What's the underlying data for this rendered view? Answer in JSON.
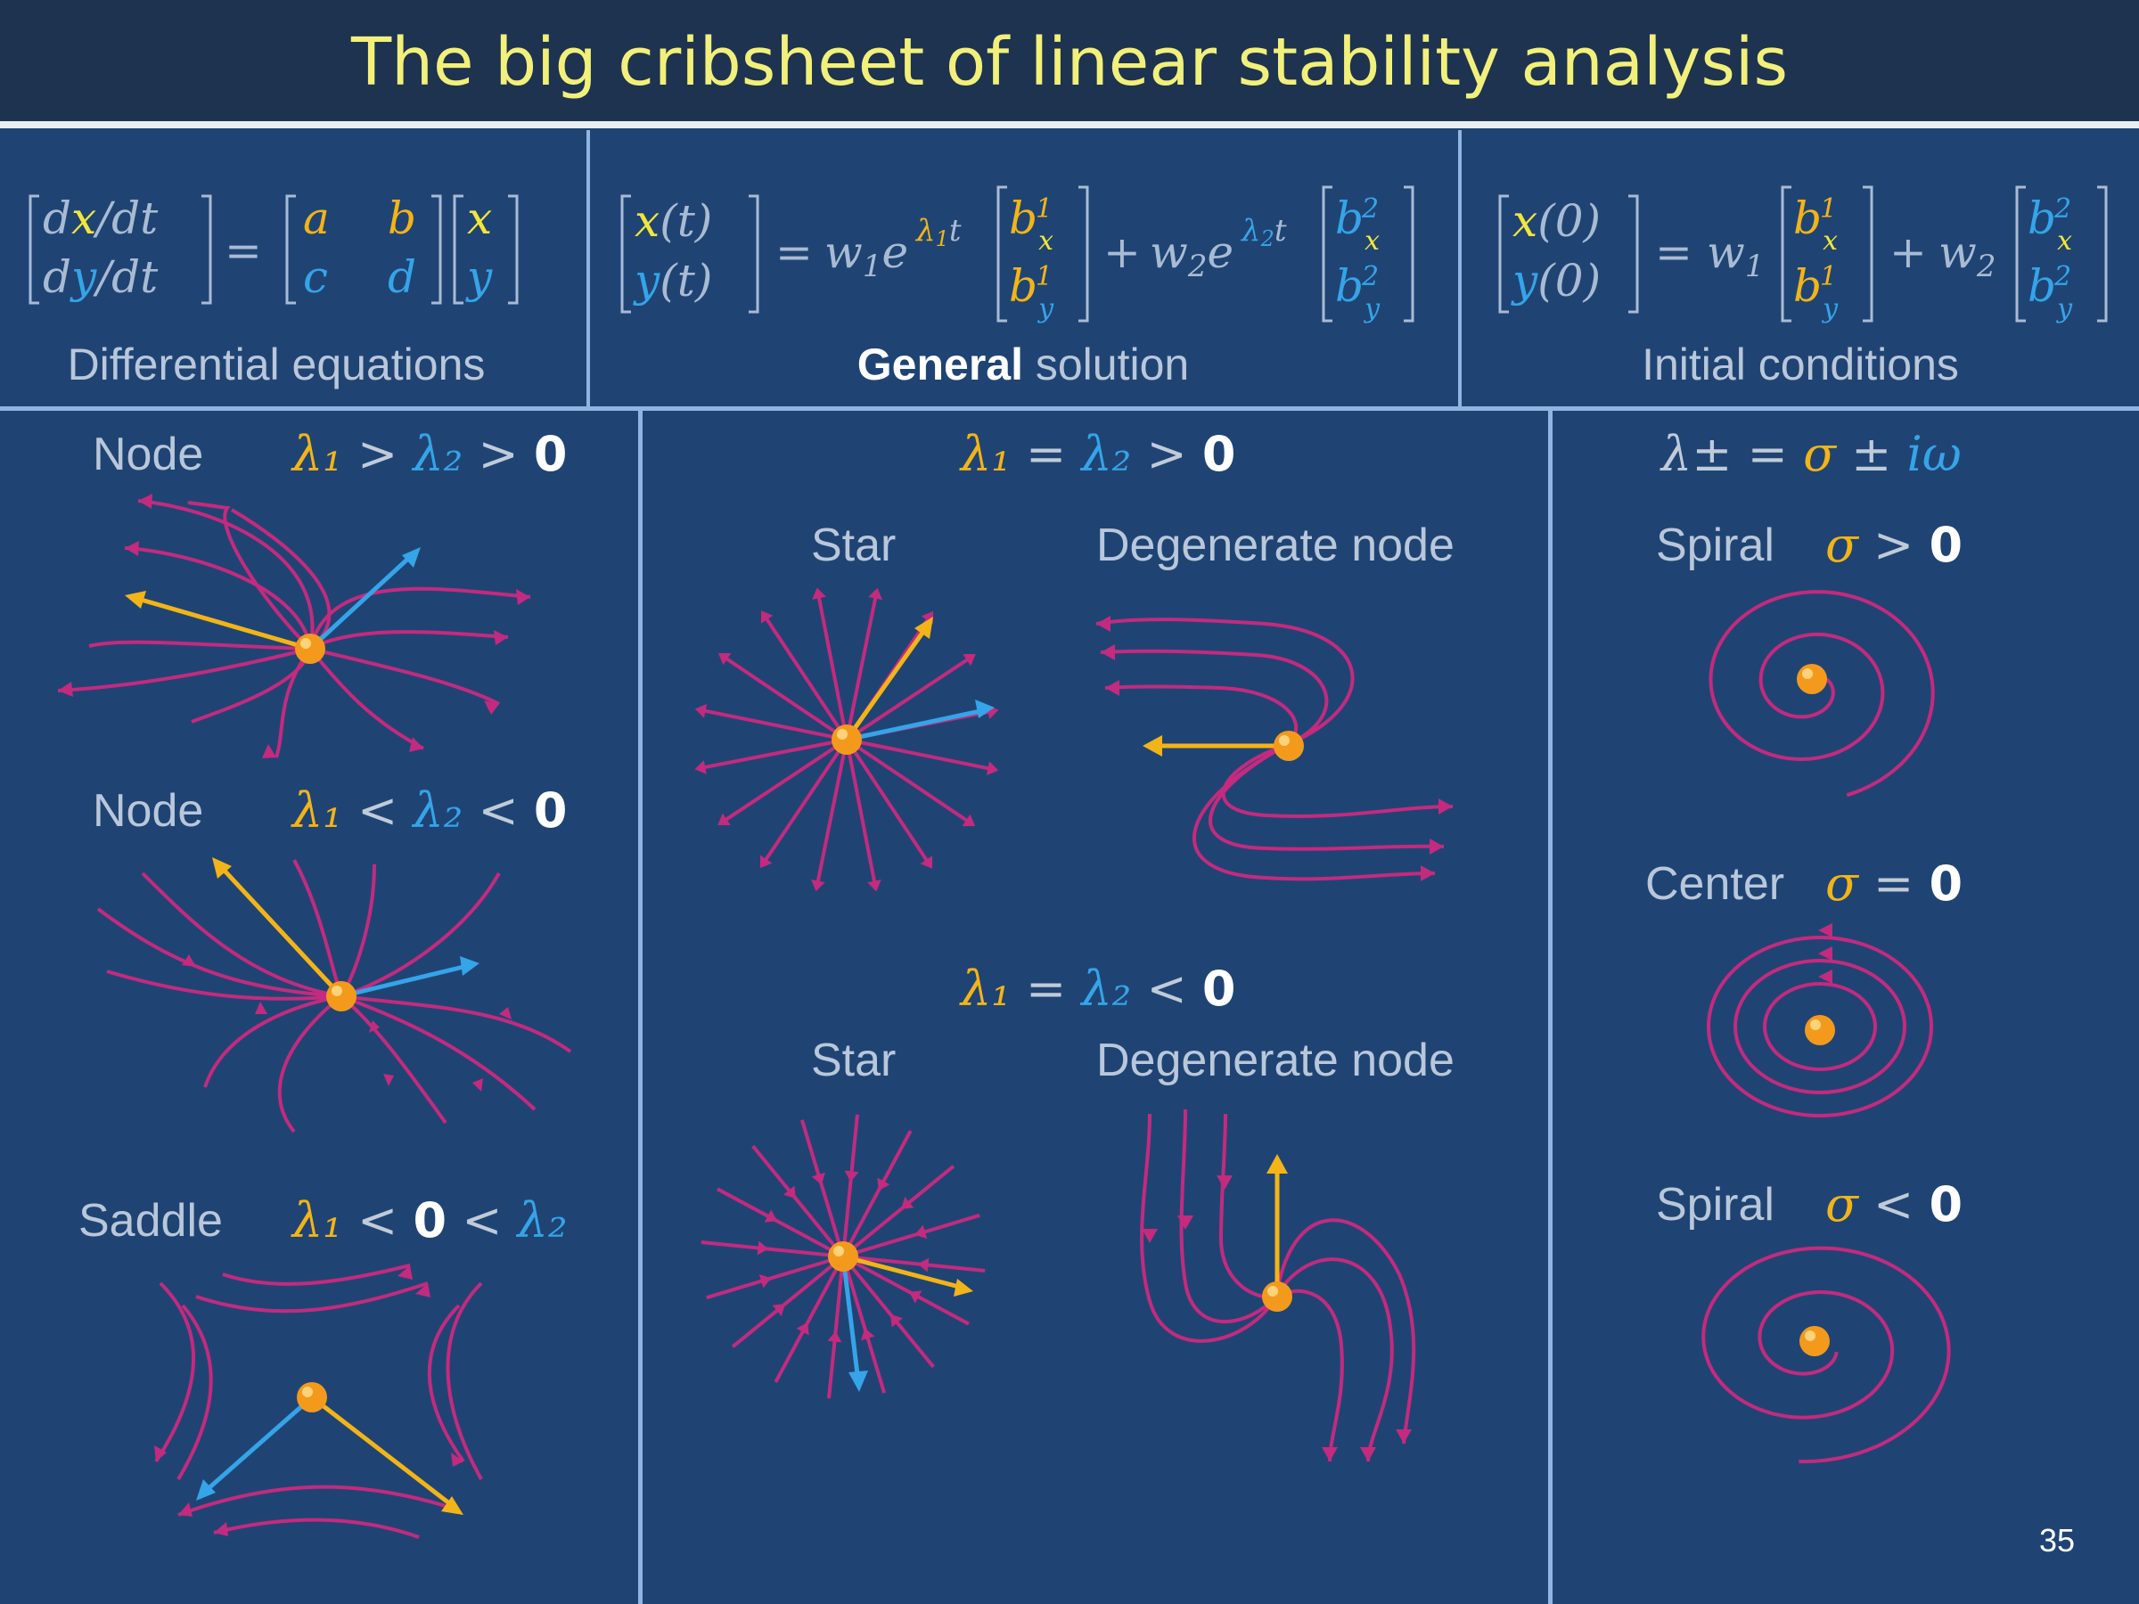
{
  "title": "The big cribsheet of linear stability analysis",
  "colors": {
    "background": "#1f4474",
    "title_bar": "#1d3350",
    "title_text": "#f2f07a",
    "trajectory": "#c42a7e",
    "eigen_1": "#f3b417",
    "eigen_2": "#35a4e8",
    "fixed_point": "#f39a1c"
  },
  "header": {
    "diff_eq": {
      "lhs": [
        "dx/dt",
        "dy/dt"
      ],
      "matrix": [
        "a",
        "b",
        "c",
        "d"
      ],
      "vec": [
        "x",
        "y"
      ],
      "caption": "Differential equations"
    },
    "general": {
      "lhs": [
        "x(t)",
        "y(t)"
      ],
      "w1": "w₁e",
      "exp1": "λ₁t",
      "w2": "w₂e",
      "exp2": "λ₂t",
      "b1": [
        "b¹ₓ",
        "b¹ᵧ"
      ],
      "b2": [
        "b²ₓ",
        "b²ᵧ"
      ],
      "caption_bold": "General",
      "caption_rest": " solution"
    },
    "initial": {
      "lhs": [
        "x(0)",
        "y(0)"
      ],
      "w1": "w₁",
      "w2": "w₂",
      "b1": [
        "b¹ₓ",
        "b¹ᵧ"
      ],
      "b2": [
        "b²ₓ",
        "b²ᵧ"
      ],
      "caption": "Initial conditions"
    }
  },
  "left": {
    "node_unstable": {
      "label": "Node",
      "l1": "λ₁",
      "op1": " > ",
      "l2": "λ₂",
      "op2": " > ",
      "rhs": "0"
    },
    "node_stable": {
      "label": "Node",
      "l1": "λ₁",
      "op1": " < ",
      "l2": "λ₂",
      "op2": " < ",
      "rhs": "0"
    },
    "saddle": {
      "label": "Saddle",
      "l1": "λ₁",
      "op1": " < ",
      "mid": "0",
      "op2": " < ",
      "l2": "λ₂"
    }
  },
  "middle": {
    "top_cond": {
      "l1": "λ₁",
      "eq": " = ",
      "l2": "λ₂",
      "op": " > ",
      "rhs": "0"
    },
    "bottom_cond": {
      "l1": "λ₁",
      "eq": " = ",
      "l2": "λ₂",
      "op": " < ",
      "rhs": "0"
    },
    "star": "Star",
    "degenerate": "Degenerate node"
  },
  "right": {
    "cond": {
      "lhs": "λ±",
      "eq": " = ",
      "sigma": "σ",
      "pm": " ± ",
      "iw": "iω"
    },
    "spiral_unstable": {
      "label": "Spiral",
      "sigma": "σ",
      "op": " > ",
      "rhs": "0"
    },
    "center": {
      "label": "Center",
      "sigma": "σ",
      "op": " = ",
      "rhs": "0"
    },
    "spiral_stable": {
      "label": "Spiral",
      "sigma": "σ",
      "op": " < ",
      "rhs": "0"
    }
  },
  "page_number": "35"
}
